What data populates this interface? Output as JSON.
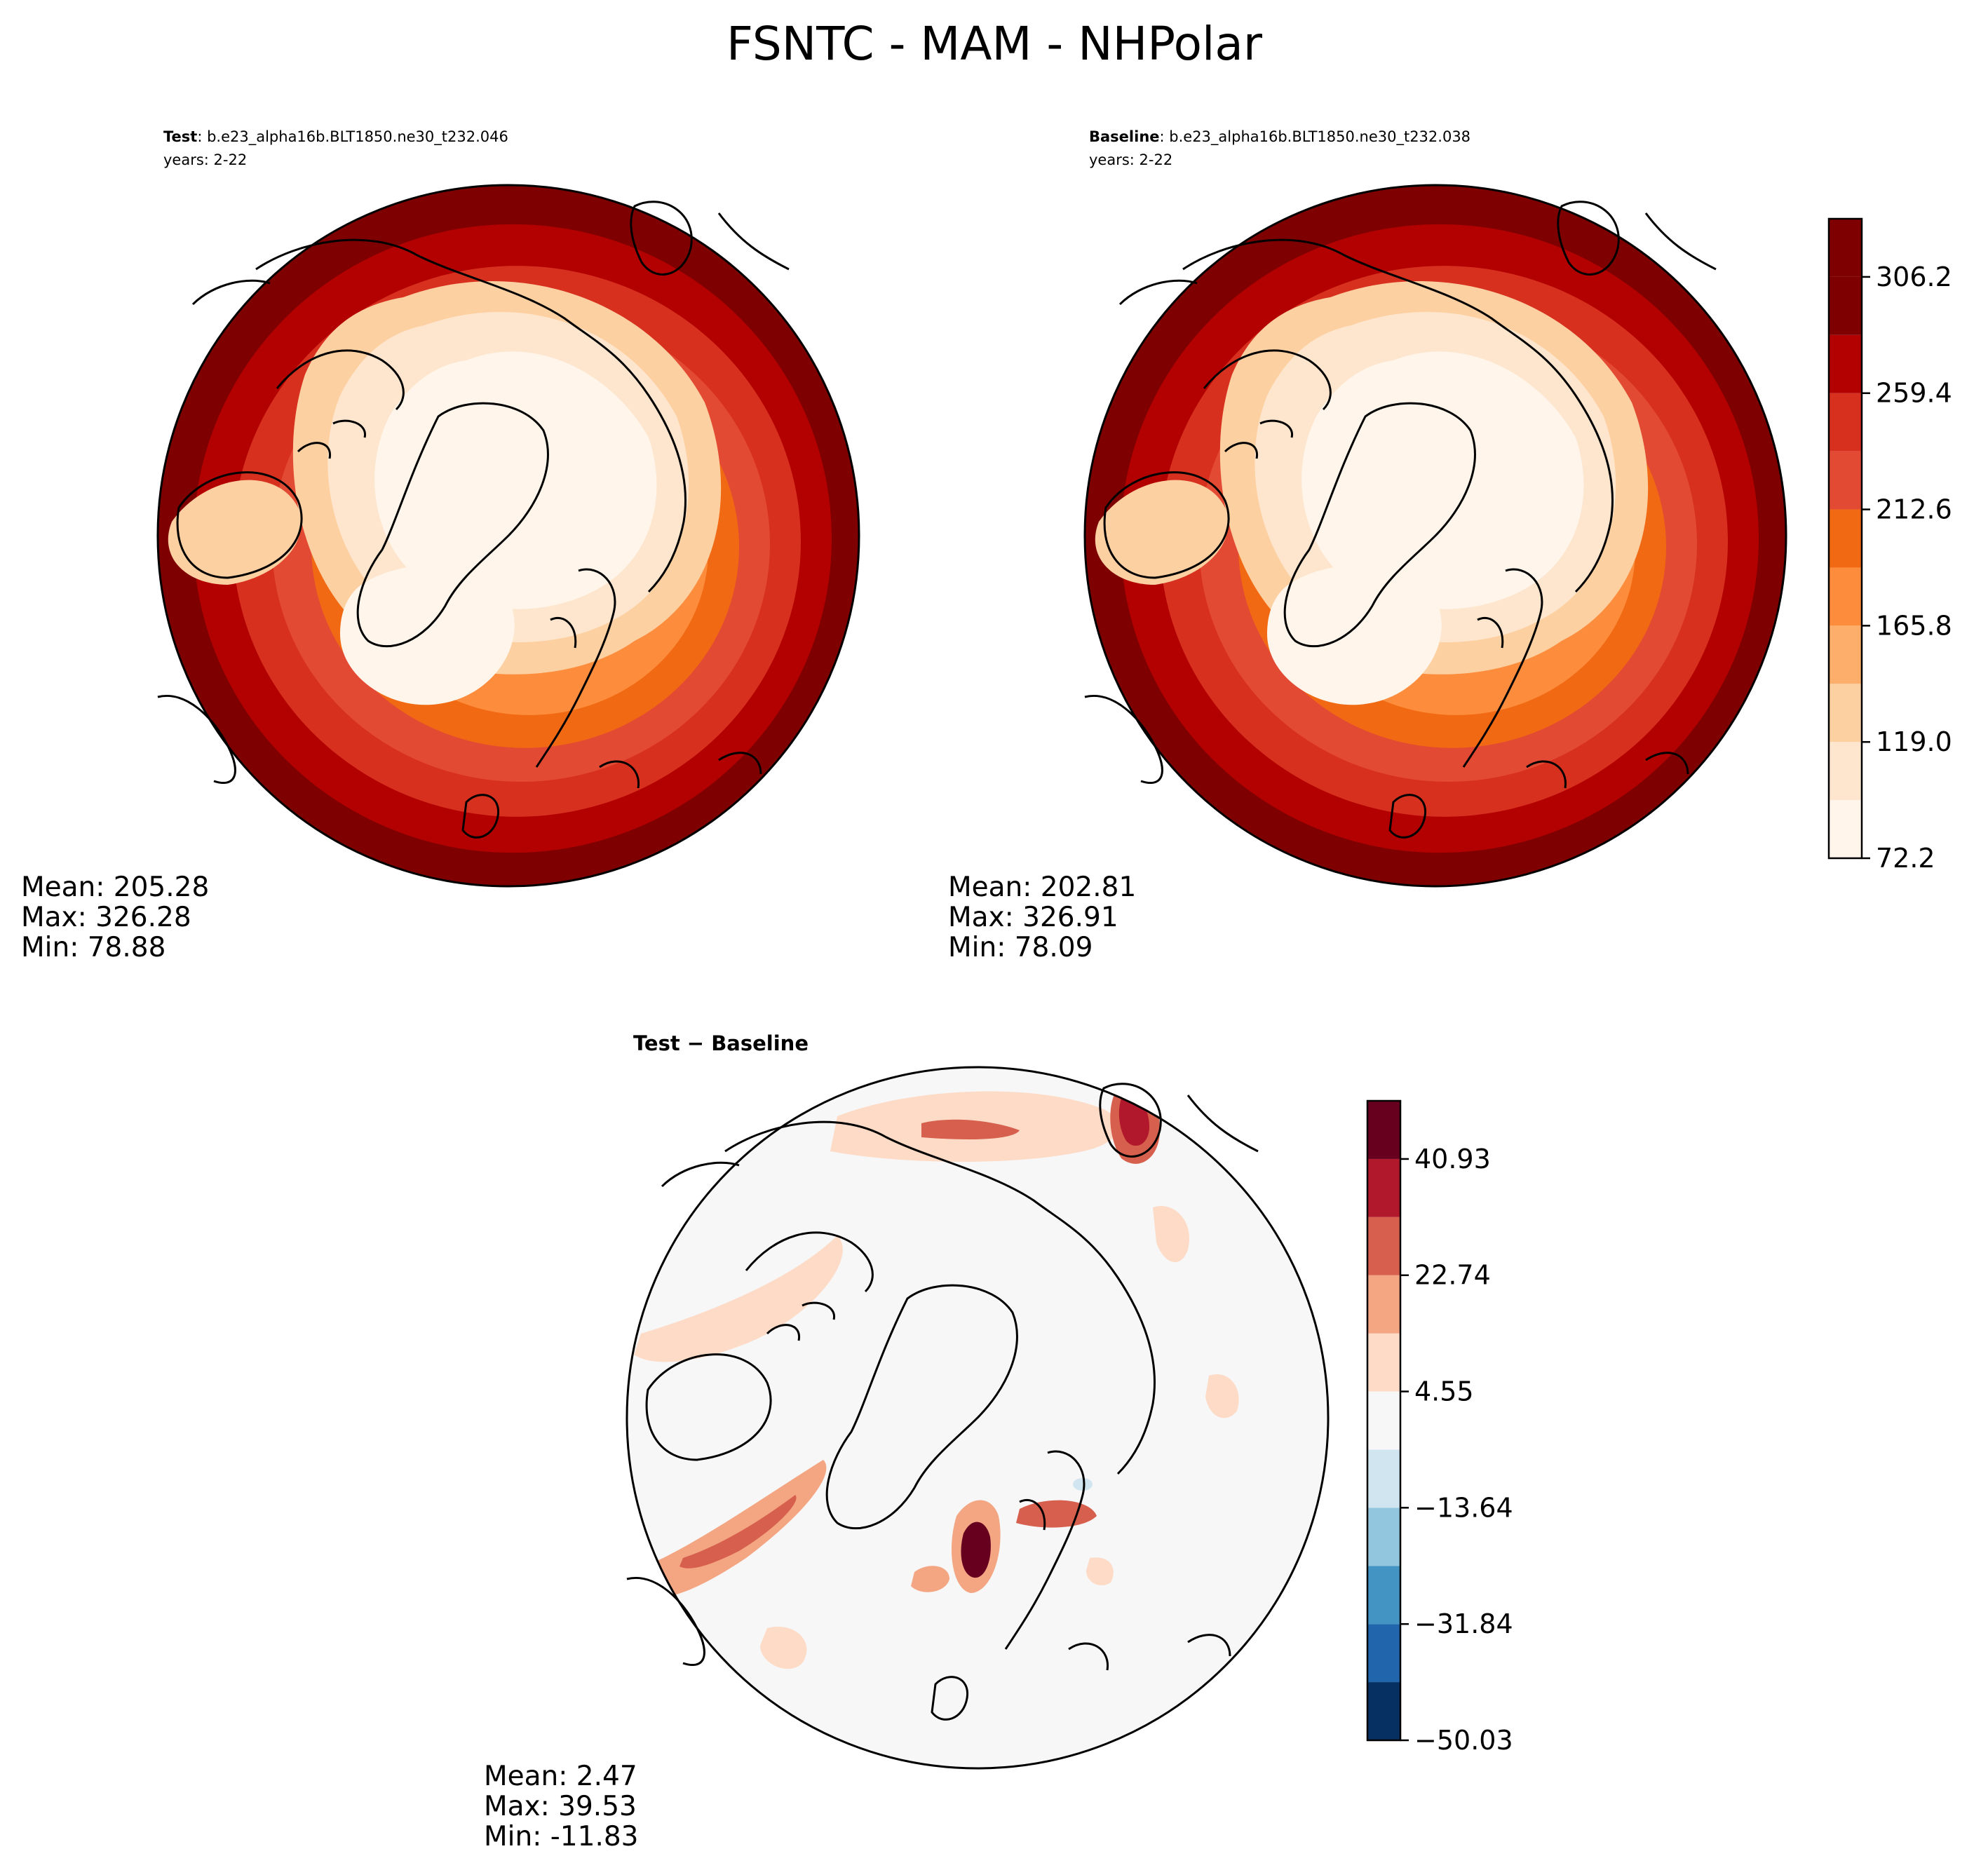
{
  "title": "FSNTC - MAM - NHPolar",
  "colors": {
    "seq": [
      "#fff5eb",
      "#fee6ce",
      "#fdd0a2",
      "#fdae6b",
      "#fd8d3c",
      "#f16913",
      "#e34a33",
      "#d7301f",
      "#b30000",
      "#7f0000"
    ],
    "div": [
      "#053061",
      "#2166ac",
      "#4393c3",
      "#92c5de",
      "#d1e5f0",
      "#f7f7f7",
      "#fddbc7",
      "#f4a582",
      "#d6604d",
      "#b2182b",
      "#67001f"
    ]
  },
  "panels": [
    {
      "label_bold": "Test",
      "label_rest": ": b.e23_alpha16b.BLT1850.ne30_t232.046",
      "years": "years: 2-22",
      "stats": {
        "mean": "Mean: 205.28",
        "max": "Max: 326.28",
        "min": "Min: 78.88"
      }
    },
    {
      "label_bold": "Baseline",
      "label_rest": ": b.e23_alpha16b.BLT1850.ne30_t232.038",
      "years": "years: 2-22",
      "stats": {
        "mean": "Mean: 202.81",
        "max": "Max: 326.91",
        "min": "Min: 78.09"
      }
    },
    {
      "label": "Test − Baseline",
      "stats": {
        "mean": "Mean:  2.47",
        "max": "Max: 39.53",
        "min": "Min: -11.83"
      }
    }
  ],
  "chart_data": {
    "type": "heatmap",
    "projection": "north-polar-stereographic",
    "colorbars": [
      {
        "for": "test-and-baseline",
        "levels": [
          72.2,
          95.6,
          119.0,
          142.4,
          165.8,
          189.2,
          212.6,
          236.0,
          259.4,
          282.8,
          306.2,
          329.6
        ],
        "tick_labels": [
          "72.2",
          "119.0",
          "165.8",
          "212.6",
          "259.4",
          "306.2"
        ]
      },
      {
        "for": "difference",
        "levels": [
          -50.03,
          -40.93,
          -31.84,
          -22.74,
          -13.64,
          -4.55,
          4.55,
          13.64,
          22.74,
          31.84,
          40.93,
          50.03
        ],
        "tick_labels": [
          "−50.03",
          "−31.84",
          "−13.64",
          "4.55",
          "22.74",
          "40.93"
        ]
      }
    ]
  }
}
